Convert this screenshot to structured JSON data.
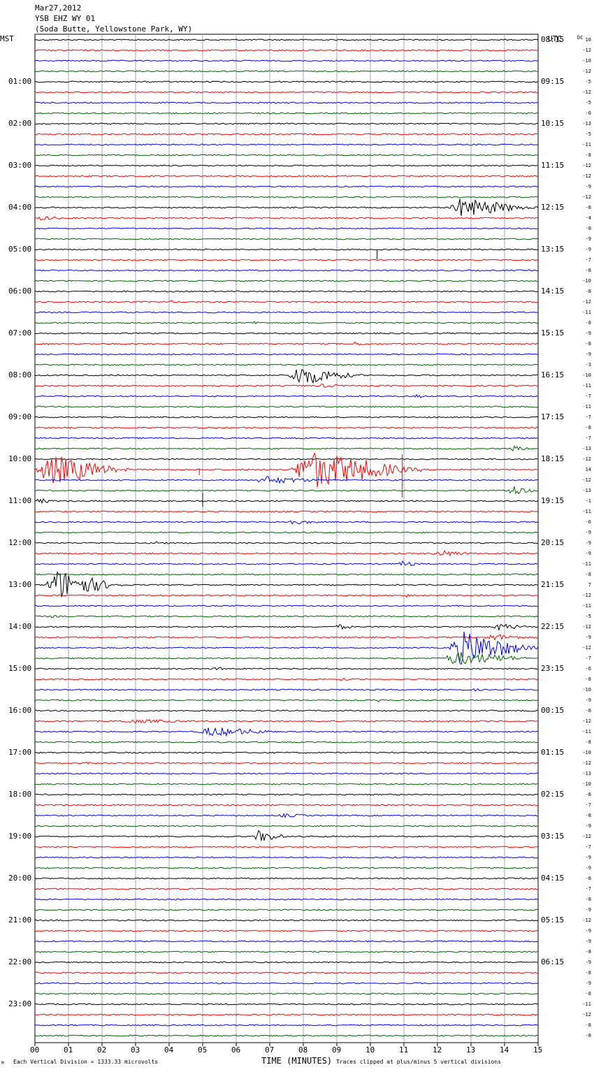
{
  "header": {
    "date": "Mar27,2012",
    "station": "YSB EHZ WY 01",
    "location": "(Soda Butte, Yellowstone Park, WY)"
  },
  "left_timezone": "MST",
  "right_timezone": "UTC",
  "dc_label": "DC",
  "colors": {
    "trace": [
      "#000000",
      "#ff0000",
      "#0000ff",
      "#006400"
    ],
    "grid": "#9090b0"
  },
  "footer": {
    "scale": "Each Vertical Division = 1333.33 microvolts",
    "clip": "Traces clipped at plus/minus 5 vertical divisions",
    "corner": "M"
  },
  "chart_data": {
    "type": "line",
    "title": "",
    "xlabel": "TIME (MINUTES)",
    "x_range": [
      0,
      15
    ],
    "x_ticks": [
      "00",
      "01",
      "02",
      "03",
      "04",
      "05",
      "06",
      "07",
      "08",
      "09",
      "10",
      "11",
      "12",
      "13",
      "14",
      "15"
    ],
    "traces_per_hour": 4,
    "hours_mst": [
      "",
      "01:00",
      "02:00",
      "03:00",
      "04:00",
      "05:00",
      "06:00",
      "07:00",
      "08:00",
      "09:00",
      "10:00",
      "11:00",
      "12:00",
      "13:00",
      "14:00",
      "15:00",
      "16:00",
      "17:00",
      "18:00",
      "19:00",
      "20:00",
      "21:00",
      "22:00",
      "23:00"
    ],
    "hours_utc": [
      "08:15",
      "09:15",
      "10:15",
      "11:15",
      "12:15",
      "13:15",
      "14:15",
      "15:15",
      "16:15",
      "17:15",
      "18:15",
      "19:15",
      "20:15",
      "21:15",
      "22:15",
      "23:15",
      "00:15",
      "01:15",
      "02:15",
      "03:15",
      "04:15",
      "05:15",
      "06:15"
    ],
    "dc_offsets": [
      10,
      -12,
      -10,
      -12,
      -5,
      -12,
      -5,
      -6,
      -13,
      -5,
      -11,
      -8,
      -12,
      -12,
      -9,
      -12,
      -8,
      -4,
      -8,
      -9,
      -9,
      -7,
      -8,
      -10,
      -8,
      -12,
      -11,
      -8,
      -9,
      -8,
      -9,
      -3,
      -10,
      -11,
      -7,
      -11,
      -7,
      -8,
      -7,
      -13,
      -12,
      14,
      -12,
      -13,
      -1,
      -11,
      -6,
      -9,
      -9,
      -9,
      -11,
      -8,
      7,
      -12,
      -11,
      -5,
      -12,
      -9,
      -12,
      -7,
      -6,
      -8,
      -10,
      -9,
      -8,
      -12,
      -11,
      -8,
      -10,
      -12,
      -13,
      -10,
      -8,
      -7,
      -8,
      -9,
      -12,
      -7,
      -9,
      -9,
      -8,
      -7,
      -8,
      -9,
      -12,
      -9,
      -9,
      -8,
      -9,
      -8,
      -9,
      -8,
      -11,
      -12,
      -8,
      -8
    ],
    "events": [
      {
        "trace": 16,
        "start": 12.3,
        "end": 15.0,
        "amp": 14
      },
      {
        "trace": 17,
        "start": 0.0,
        "end": 1.2,
        "amp": 3
      },
      {
        "trace": 25,
        "start": 4.0,
        "end": 4.4,
        "amp": 2
      },
      {
        "trace": 27,
        "start": 6.5,
        "end": 6.8,
        "amp": 4
      },
      {
        "trace": 29,
        "start": 9.3,
        "end": 10.4,
        "amp": 3
      },
      {
        "trace": 32,
        "start": 7.5,
        "end": 9.8,
        "amp": 14
      },
      {
        "trace": 33,
        "start": 8.4,
        "end": 9.6,
        "amp": 3
      },
      {
        "trace": 34,
        "start": 11.3,
        "end": 11.8,
        "amp": 3
      },
      {
        "trace": 39,
        "start": 14.1,
        "end": 15.0,
        "amp": 4
      },
      {
        "trace": 41,
        "start": 0.0,
        "end": 2.8,
        "amp": 22
      },
      {
        "trace": 41,
        "start": 7.6,
        "end": 11.5,
        "amp": 28
      },
      {
        "trace": 42,
        "start": 6.5,
        "end": 8.8,
        "amp": 6
      },
      {
        "trace": 43,
        "start": 14.0,
        "end": 15.0,
        "amp": 8
      },
      {
        "trace": 44,
        "start": 0.0,
        "end": 0.8,
        "amp": 4
      },
      {
        "trace": 46,
        "start": 7.3,
        "end": 8.8,
        "amp": 4
      },
      {
        "trace": 48,
        "start": 3.5,
        "end": 4.2,
        "amp": 3
      },
      {
        "trace": 49,
        "start": 11.8,
        "end": 13.3,
        "amp": 5
      },
      {
        "trace": 50,
        "start": 10.8,
        "end": 11.8,
        "amp": 4
      },
      {
        "trace": 52,
        "start": 0.3,
        "end": 2.6,
        "amp": 22
      },
      {
        "trace": 53,
        "start": 11.0,
        "end": 11.5,
        "amp": 3
      },
      {
        "trace": 55,
        "start": 0.4,
        "end": 1.0,
        "amp": 2
      },
      {
        "trace": 56,
        "start": 8.9,
        "end": 9.7,
        "amp": 4
      },
      {
        "trace": 56,
        "start": 13.6,
        "end": 15.0,
        "amp": 5
      },
      {
        "trace": 57,
        "start": 13.4,
        "end": 15.0,
        "amp": 5
      },
      {
        "trace": 58,
        "start": 12.3,
        "end": 15.0,
        "amp": 24
      },
      {
        "trace": 59,
        "start": 12.1,
        "end": 15.0,
        "amp": 10
      },
      {
        "trace": 60,
        "start": 5.3,
        "end": 5.8,
        "amp": 3
      },
      {
        "trace": 61,
        "start": 9.0,
        "end": 9.8,
        "amp": 2
      },
      {
        "trace": 62,
        "start": 13.0,
        "end": 13.6,
        "amp": 2
      },
      {
        "trace": 63,
        "start": 10.2,
        "end": 10.6,
        "amp": 3
      },
      {
        "trace": 65,
        "start": 2.3,
        "end": 5.6,
        "amp": 3
      },
      {
        "trace": 66,
        "start": 4.8,
        "end": 7.6,
        "amp": 7
      },
      {
        "trace": 69,
        "start": 1.4,
        "end": 2.2,
        "amp": 2
      },
      {
        "trace": 74,
        "start": 7.2,
        "end": 8.6,
        "amp": 3
      },
      {
        "trace": 76,
        "start": 6.5,
        "end": 7.6,
        "amp": 9
      },
      {
        "trace": 82,
        "start": 10.6,
        "end": 11.2,
        "amp": 2
      }
    ],
    "spikes": [
      {
        "trace": 20,
        "at": 10.2,
        "up": 0,
        "down": 14
      },
      {
        "trace": 41,
        "at": 4.9,
        "up": 2,
        "down": 8
      },
      {
        "trace": 41,
        "at": 10.95,
        "up": 22,
        "down": 40
      },
      {
        "trace": 44,
        "at": 5.0,
        "up": 12,
        "down": 8
      }
    ]
  }
}
